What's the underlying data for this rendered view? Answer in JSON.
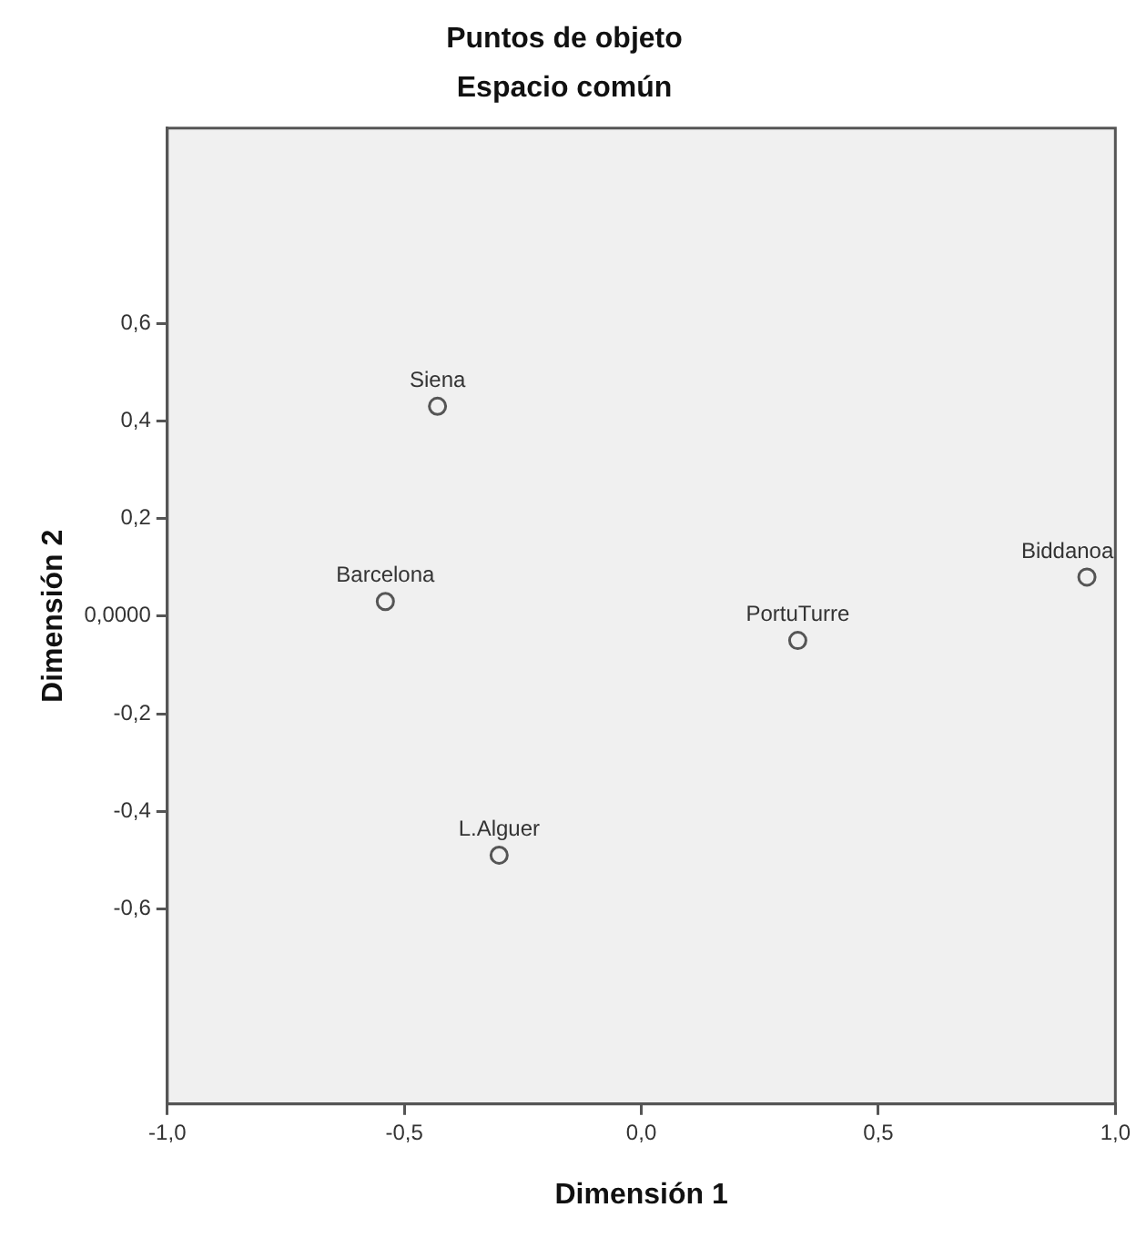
{
  "chart_data": {
    "type": "scatter",
    "title": "Puntos de objeto",
    "subtitle": "Espacio común",
    "xlabel": "Dimensión 1",
    "ylabel": "Dimensión 2",
    "x": [
      -0.43,
      -0.54,
      -0.3,
      0.33,
      0.94
    ],
    "series": [
      {
        "color": "#555555",
        "values": [
          0.43,
          0.03,
          -0.49,
          -0.05,
          0.08
        ]
      }
    ],
    "marker": "circle",
    "grid": false,
    "legend": false,
    "xlim": [
      -1.0,
      1.0
    ],
    "xticks": [
      {
        "value": -1.0,
        "label": "-1,0"
      },
      {
        "value": -0.5,
        "label": "-0,5"
      },
      {
        "value": 0,
        "label": "0,0"
      },
      {
        "value": 0.5,
        "label": "0,5"
      },
      {
        "value": 1.0,
        "label": "1,0"
      }
    ],
    "ylim": [
      -1.0,
      1.0
    ],
    "yticks": [
      {
        "value": -0.6,
        "label": "-0,6"
      },
      {
        "value": -0.4,
        "label": "-0,4"
      },
      {
        "value": -0.2,
        "label": "-0,2"
      },
      {
        "value": 0,
        "label": "0,0000"
      },
      {
        "value": 0.2,
        "label": "0,2"
      },
      {
        "value": 0.4,
        "label": "0,4"
      },
      {
        "value": 0.6,
        "label": "0,6"
      }
    ],
    "annotations": [
      {
        "text": "Siena",
        "x": -0.43,
        "y": 0.43
      },
      {
        "text": "Barcelona",
        "x": -0.54,
        "y": 0.03
      },
      {
        "text": "L.Alguer",
        "x": -0.3,
        "y": -0.49
      },
      {
        "text": "PortuTurre",
        "x": 0.33,
        "y": -0.05
      },
      {
        "text": "Biddanoa",
        "x": 0.94,
        "y": 0.08
      }
    ]
  }
}
